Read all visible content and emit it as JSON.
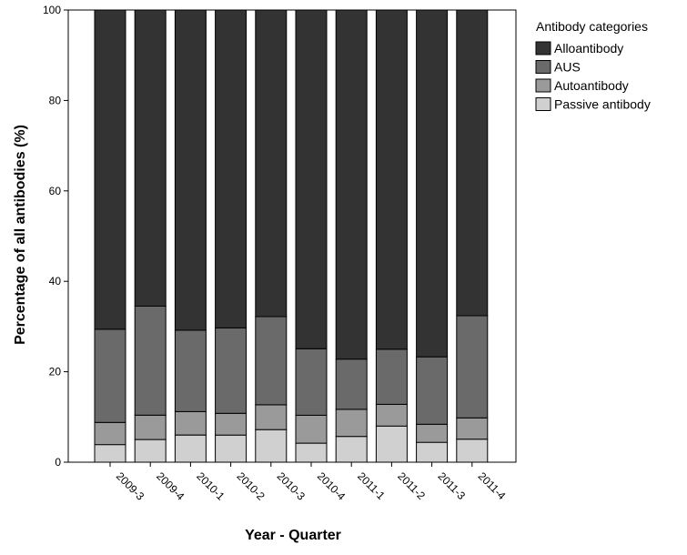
{
  "chart_data": {
    "type": "bar",
    "stacked": true,
    "xlabel": "Year - Quarter",
    "ylabel": "Percentage of all antibodies (%)",
    "ylim": [
      0,
      100
    ],
    "yticks": [
      0,
      20,
      40,
      60,
      80,
      100
    ],
    "categories": [
      "2009-3",
      "2009-4",
      "2010-1",
      "2010-2",
      "2010-3",
      "2010-4",
      "2011-1",
      "2011-2",
      "2011-3",
      "2011-4"
    ],
    "legend": {
      "title": "Antibody categories",
      "position": "top-right"
    },
    "series": [
      {
        "name": "Passive antibody",
        "color": "#d0d0d0",
        "values": [
          3.9,
          5.0,
          6.0,
          6.0,
          7.2,
          4.2,
          5.7,
          8.0,
          4.4,
          5.1
        ]
      },
      {
        "name": "Autoantibody",
        "color": "#9a9a9a",
        "values": [
          4.9,
          5.4,
          5.2,
          4.8,
          5.5,
          6.2,
          6.0,
          4.8,
          4.0,
          4.7
        ]
      },
      {
        "name": "AUS",
        "color": "#6a6a6a",
        "values": [
          20.6,
          24.1,
          18.0,
          18.9,
          19.5,
          14.7,
          11.1,
          12.2,
          14.9,
          22.6
        ]
      },
      {
        "name": "Alloantibody",
        "color": "#333333",
        "values": [
          70.6,
          65.5,
          70.8,
          70.3,
          67.8,
          74.9,
          77.2,
          75.0,
          76.7,
          67.6
        ]
      }
    ],
    "legend_order": [
      "Alloantibody",
      "AUS",
      "Autoantibody",
      "Passive antibody"
    ],
    "grid": false
  }
}
